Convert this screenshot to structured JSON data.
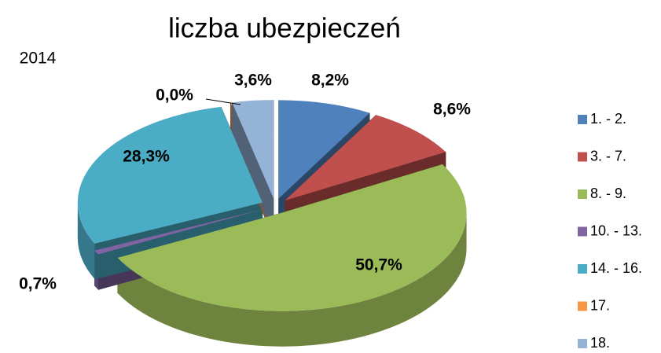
{
  "chart_data": {
    "type": "pie3d",
    "title": "liczba ubezpieczeń",
    "subtitle": "2014",
    "categories": [
      "1. - 2.",
      "3. - 7.",
      "8. - 9.",
      "10. - 13.",
      "14. - 16.",
      "17.",
      "18."
    ],
    "values": [
      8.2,
      8.6,
      50.7,
      0.7,
      28.3,
      0.0,
      3.6
    ],
    "value_labels": [
      "8,2%",
      "8,6%",
      "50,7%",
      "0,7%",
      "28,3%",
      "0,0%",
      "3,6%"
    ],
    "colors": [
      "#4f81bd",
      "#c0504d",
      "#9bbb59",
      "#8064a2",
      "#4bacc6",
      "#f79646",
      "#95b3d7"
    ],
    "legend": "right"
  }
}
